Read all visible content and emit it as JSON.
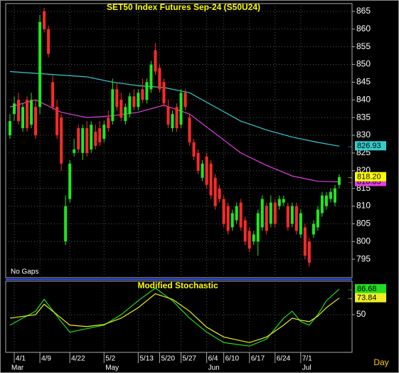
{
  "chart_data": [
    {
      "type": "candlestick",
      "title": "SET50 Index Futures Sep-24 (S50U24)",
      "annotation": "No Gaps",
      "x_label": "Day",
      "up_color": "#1ee81e",
      "down_color": "#ff2a2a",
      "xlim": [
        -1,
        80
      ],
      "ylim": [
        789.8,
        867.2
      ],
      "yticks": [
        795,
        800,
        805,
        810,
        815,
        820,
        825,
        830,
        835,
        840,
        845,
        850,
        855,
        860,
        865
      ],
      "grid": true,
      "xticks": [
        {
          "value": 1,
          "label": "4/1"
        },
        {
          "value": 7,
          "label": "4/9"
        },
        {
          "value": 14,
          "label": "4/22"
        },
        {
          "value": 22,
          "label": "5/2"
        },
        {
          "value": 30,
          "label": "5/13"
        },
        {
          "value": 35,
          "label": "5/20"
        },
        {
          "value": 40,
          "label": "5/27"
        },
        {
          "value": 46,
          "label": "6/4"
        },
        {
          "value": 50,
          "label": "6/10"
        },
        {
          "value": 56,
          "label": "6/17"
        },
        {
          "value": 62,
          "label": "6/24"
        },
        {
          "value": 68,
          "label": "7/1"
        }
      ],
      "months": [
        {
          "value": 0,
          "label": "Mar"
        },
        {
          "value": 22,
          "label": "May"
        },
        {
          "value": 46,
          "label": "Jun"
        },
        {
          "value": 68,
          "label": "Jul"
        }
      ],
      "ohlc": [
        [
          830,
          836,
          829,
          834
        ],
        [
          836,
          841,
          834,
          839
        ],
        [
          840,
          842,
          833,
          834
        ],
        [
          832,
          839,
          831,
          838
        ],
        [
          840,
          841,
          831,
          832
        ],
        [
          833,
          842,
          832,
          840
        ],
        [
          838,
          840,
          829,
          830
        ],
        [
          838,
          864,
          836,
          862
        ],
        [
          865,
          866,
          859,
          860
        ],
        [
          860,
          861,
          852,
          853
        ],
        [
          845,
          847,
          837,
          838
        ],
        [
          838,
          840,
          829,
          830
        ],
        [
          835,
          836,
          820,
          822
        ],
        [
          800,
          813,
          799,
          810
        ],
        [
          812,
          823,
          811,
          822
        ],
        [
          825,
          829,
          824,
          826
        ],
        [
          832,
          833,
          825,
          826
        ],
        [
          825,
          833,
          823,
          832
        ],
        [
          832,
          834,
          824,
          825
        ],
        [
          826,
          834,
          825,
          833
        ],
        [
          831,
          833,
          826,
          827
        ],
        [
          832,
          834,
          827,
          828
        ],
        [
          829,
          834,
          828,
          833
        ],
        [
          835,
          837,
          831,
          832
        ],
        [
          834,
          846,
          833,
          843
        ],
        [
          843,
          845,
          837,
          838
        ],
        [
          840,
          842,
          834,
          835
        ],
        [
          834,
          839,
          833,
          838
        ],
        [
          836,
          842,
          835,
          841
        ],
        [
          841,
          843,
          837,
          838
        ],
        [
          838,
          843,
          837,
          842
        ],
        [
          843,
          846,
          839,
          840
        ],
        [
          840,
          846,
          839,
          845
        ],
        [
          843,
          851,
          842,
          850
        ],
        [
          854,
          856,
          847,
          848
        ],
        [
          849,
          850,
          842,
          843
        ],
        [
          845,
          846,
          838,
          839
        ],
        [
          838,
          840,
          832,
          833
        ],
        [
          832,
          837,
          831,
          836
        ],
        [
          838,
          839,
          831,
          832
        ],
        [
          833,
          843,
          832,
          842
        ],
        [
          842,
          843,
          837,
          838
        ],
        [
          835,
          836,
          827,
          828
        ],
        [
          828,
          829,
          823,
          824
        ],
        [
          825,
          826,
          819,
          820
        ],
        [
          818,
          823,
          817,
          822
        ],
        [
          824,
          825,
          815,
          816
        ],
        [
          822,
          823,
          812,
          813
        ],
        [
          818,
          819,
          809,
          810
        ],
        [
          815,
          816,
          811,
          812
        ],
        [
          812,
          813,
          804,
          805
        ],
        [
          810,
          811,
          802,
          803
        ],
        [
          804,
          809,
          803,
          808
        ],
        [
          806,
          811,
          805,
          810
        ],
        [
          811,
          812,
          803,
          804
        ],
        [
          806,
          807,
          799,
          800
        ],
        [
          803,
          804,
          797,
          798
        ],
        [
          800,
          803,
          799,
          802
        ],
        [
          800,
          809,
          796,
          808
        ],
        [
          804,
          813,
          803,
          812
        ],
        [
          810,
          811,
          802,
          803
        ],
        [
          805,
          813,
          804,
          811
        ],
        [
          811,
          812,
          804,
          805
        ],
        [
          810,
          813,
          809,
          812
        ],
        [
          811,
          813,
          810,
          812
        ],
        [
          810,
          811,
          803,
          804
        ],
        [
          805,
          811,
          804,
          810
        ],
        [
          810,
          811,
          802,
          803
        ],
        [
          802,
          809,
          801,
          808
        ],
        [
          804,
          805,
          795,
          796
        ],
        [
          800,
          801,
          793,
          794
        ],
        [
          802,
          806,
          801,
          805
        ],
        [
          804,
          810,
          803,
          809
        ],
        [
          808,
          814,
          807,
          813
        ],
        [
          810,
          814,
          809,
          813
        ],
        [
          812,
          815,
          811,
          814
        ],
        [
          811,
          816,
          810,
          815
        ],
        [
          816,
          819,
          815,
          818.2
        ]
      ],
      "last_price": {
        "value": 818.2,
        "label": "818.20"
      },
      "last_price_color": "#ffff00",
      "series": [
        {
          "color": "#33cccc",
          "x": [
            0,
            6,
            12,
            18,
            24,
            30,
            36,
            42,
            48,
            54,
            60,
            66,
            72,
            77
          ],
          "values": [
            848,
            847.5,
            847,
            846.5,
            845,
            844,
            843.5,
            842,
            838,
            834,
            831.5,
            829.5,
            828,
            826.93
          ]
        },
        {
          "color": "#e040e0",
          "x": [
            0,
            6,
            12,
            18,
            24,
            30,
            36,
            42,
            48,
            54,
            60,
            66,
            72,
            77
          ],
          "values": [
            838,
            840,
            836.5,
            835,
            835.5,
            836.5,
            838.5,
            836,
            830.5,
            825,
            821.5,
            818.5,
            817,
            816.85
          ]
        }
      ]
    },
    {
      "type": "line",
      "title": "Modified Stochastic",
      "xlim": [
        -1,
        80
      ],
      "ylim": [
        -4,
        98
      ],
      "yticks": [
        50
      ],
      "grid": true,
      "series": [
        {
          "color": "#22dd22",
          "x": [
            0,
            6,
            8,
            12,
            14,
            18,
            22,
            26,
            30,
            34,
            38,
            42,
            46,
            50,
            56,
            60,
            64,
            66,
            68,
            70,
            72,
            74,
            77
          ],
          "values": [
            35,
            55,
            72,
            40,
            25,
            30,
            35,
            50,
            70,
            88,
            70,
            45,
            25,
            10,
            5,
            15,
            45,
            55,
            40,
            35,
            50,
            70,
            86.68
          ]
        },
        {
          "color": "#eeee22",
          "x": [
            0,
            6,
            8,
            12,
            14,
            18,
            22,
            26,
            30,
            34,
            38,
            42,
            46,
            50,
            56,
            60,
            64,
            66,
            68,
            70,
            72,
            74,
            77
          ],
          "values": [
            45,
            50,
            65,
            45,
            35,
            33,
            36,
            45,
            60,
            80,
            72,
            55,
            32,
            18,
            10,
            18,
            35,
            45,
            42,
            40,
            48,
            60,
            73.84
          ]
        }
      ]
    }
  ]
}
